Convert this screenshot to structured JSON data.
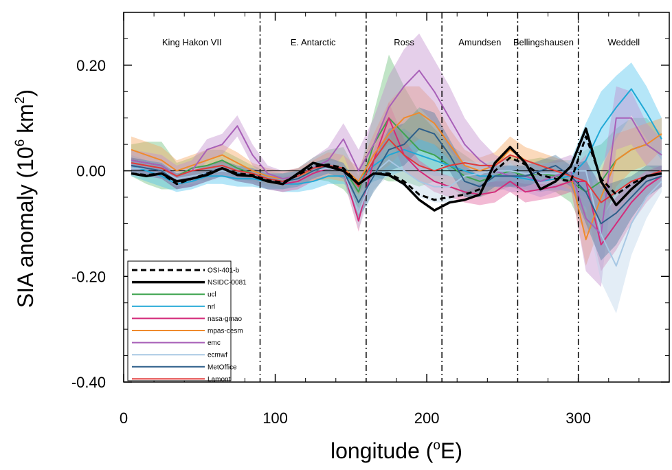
{
  "chart_data": {
    "type": "line",
    "title": "",
    "xlabel": "longitude (°E)",
    "xlabel_prefix": "longitude (",
    "xlabel_sup": "o",
    "xlabel_suffix": "E)",
    "ylabel": "SIA anomaly (10⁶ km²)",
    "ylabel_prefix": "SIA anomaly (10",
    "ylabel_sup1": "6",
    "ylabel_mid": " km",
    "ylabel_sup2": "2",
    "ylabel_suffix": ")",
    "xlim": [
      0,
      360
    ],
    "ylim": [
      -0.4,
      0.3
    ],
    "x_ticks": [
      0,
      100,
      200,
      300
    ],
    "x_tick_labels": [
      "0",
      "100",
      "200",
      "300"
    ],
    "y_ticks": [
      -0.4,
      -0.2,
      0.0,
      0.2
    ],
    "y_tick_labels": [
      "-0.40",
      "-0.20",
      "0.00",
      "0.20"
    ],
    "zero_line": true,
    "grid": false,
    "legend_position": "bottom-left",
    "regions": [
      {
        "name": "King Hakon VII",
        "center": 45
      },
      {
        "name": "E. Antarctic",
        "center": 125
      },
      {
        "name": "Ross",
        "center": 185
      },
      {
        "name": "Amundsen",
        "center": 235
      },
      {
        "name": "Bellingshausen",
        "center": 277
      },
      {
        "name": "Weddell",
        "center": 330
      }
    ],
    "boundaries": [
      90,
      160,
      210,
      260,
      300
    ],
    "x": [
      5,
      15,
      25,
      35,
      45,
      55,
      65,
      75,
      85,
      95,
      105,
      115,
      125,
      135,
      145,
      155,
      165,
      175,
      185,
      195,
      205,
      215,
      225,
      235,
      245,
      255,
      265,
      275,
      285,
      295,
      305,
      315,
      325,
      335,
      345,
      355
    ],
    "series": [
      {
        "name": "OSI-401-b",
        "color": "#000000",
        "dash": "8,5",
        "width": 3,
        "band": false,
        "values": [
          -0.005,
          -0.008,
          -0.005,
          -0.025,
          -0.015,
          -0.005,
          0.005,
          -0.005,
          -0.008,
          -0.018,
          -0.022,
          -0.008,
          0.008,
          0.012,
          0.005,
          -0.025,
          -0.005,
          -0.005,
          -0.02,
          -0.045,
          -0.055,
          -0.05,
          -0.045,
          -0.035,
          0.0,
          0.025,
          0.012,
          -0.008,
          -0.015,
          -0.02,
          0.065,
          -0.015,
          -0.045,
          -0.025,
          -0.01,
          -0.005
        ]
      },
      {
        "name": "NSIDC-0081",
        "color": "#000000",
        "dash": "",
        "width": 3.5,
        "band": false,
        "values": [
          -0.005,
          -0.01,
          -0.005,
          -0.02,
          -0.015,
          -0.008,
          0.005,
          -0.008,
          -0.01,
          -0.02,
          -0.025,
          -0.005,
          0.015,
          0.008,
          0.0,
          -0.025,
          -0.005,
          -0.008,
          -0.025,
          -0.055,
          -0.075,
          -0.06,
          -0.055,
          -0.045,
          0.015,
          0.045,
          0.015,
          -0.035,
          -0.02,
          0.008,
          0.08,
          -0.02,
          -0.065,
          -0.035,
          -0.01,
          -0.005
        ]
      },
      {
        "name": "ucl",
        "color": "#3ea34f",
        "dash": "",
        "width": 2,
        "band": true,
        "band_color": "#6bbf7a",
        "values": [
          0.02,
          0.015,
          0.01,
          -0.01,
          0.005,
          0.01,
          0.02,
          0.005,
          -0.005,
          -0.015,
          -0.02,
          -0.01,
          0.005,
          0.01,
          0.005,
          -0.04,
          0.05,
          0.1,
          0.07,
          0.04,
          0.03,
          0.01,
          -0.01,
          -0.02,
          -0.01,
          0.0,
          -0.01,
          -0.005,
          -0.01,
          -0.02,
          -0.04,
          -0.02,
          0.02,
          0.04,
          0.05,
          0.03
        ],
        "spread": [
          0.03,
          0.04,
          0.045,
          0.025,
          0.02,
          0.03,
          0.02,
          0.02,
          0.015,
          0.015,
          0.015,
          0.015,
          0.02,
          0.03,
          0.04,
          0.03,
          0.06,
          0.12,
          0.09,
          0.07,
          0.05,
          0.04,
          0.04,
          0.03,
          0.03,
          0.03,
          0.03,
          0.03,
          0.03,
          0.04,
          0.08,
          0.07,
          0.06,
          0.06,
          0.05,
          0.04
        ]
      },
      {
        "name": "nrl",
        "color": "#20a8d6",
        "dash": "",
        "width": 2,
        "band": true,
        "band_color": "#4fc3ee",
        "values": [
          0.01,
          0.0,
          -0.01,
          -0.025,
          -0.02,
          -0.01,
          -0.01,
          -0.015,
          -0.015,
          -0.02,
          -0.025,
          -0.025,
          -0.02,
          -0.01,
          -0.01,
          -0.02,
          0.01,
          0.03,
          0.04,
          0.03,
          0.02,
          0.01,
          0.0,
          -0.01,
          -0.01,
          -0.01,
          -0.015,
          -0.02,
          -0.015,
          -0.01,
          0.02,
          0.08,
          0.12,
          0.155,
          0.11,
          0.06
        ],
        "spread": [
          0.02,
          0.02,
          0.02,
          0.015,
          0.015,
          0.015,
          0.015,
          0.015,
          0.015,
          0.015,
          0.015,
          0.015,
          0.015,
          0.015,
          0.015,
          0.02,
          0.03,
          0.04,
          0.04,
          0.03,
          0.03,
          0.02,
          0.02,
          0.02,
          0.02,
          0.02,
          0.02,
          0.02,
          0.02,
          0.03,
          0.07,
          0.07,
          0.06,
          0.05,
          0.05,
          0.04
        ]
      },
      {
        "name": "nasa-gmao",
        "color": "#d42a7a",
        "dash": "",
        "width": 2,
        "band": true,
        "band_color": "#e15a98",
        "values": [
          0.01,
          0.005,
          0.0,
          -0.02,
          -0.015,
          -0.005,
          0.005,
          -0.005,
          -0.01,
          -0.02,
          -0.025,
          -0.02,
          -0.005,
          0.005,
          0.0,
          -0.095,
          0.02,
          0.1,
          0.03,
          0.0,
          -0.02,
          -0.03,
          -0.04,
          -0.045,
          -0.04,
          -0.02,
          -0.04,
          -0.035,
          -0.03,
          -0.02,
          -0.02,
          -0.14,
          -0.1,
          -0.06,
          -0.03,
          -0.01
        ],
        "spread": [
          0.015,
          0.015,
          0.015,
          0.015,
          0.015,
          0.015,
          0.015,
          0.015,
          0.015,
          0.015,
          0.015,
          0.015,
          0.015,
          0.015,
          0.015,
          0.02,
          0.02,
          0.03,
          0.03,
          0.02,
          0.02,
          0.02,
          0.02,
          0.02,
          0.02,
          0.02,
          0.02,
          0.02,
          0.02,
          0.02,
          0.05,
          0.05,
          0.05,
          0.04,
          0.03,
          0.02
        ]
      },
      {
        "name": "mpas-cesm",
        "color": "#ef8a2c",
        "dash": "",
        "width": 2,
        "band": true,
        "band_color": "#f5a45d",
        "values": [
          0.04,
          0.03,
          0.02,
          0.0,
          0.01,
          0.02,
          0.03,
          0.015,
          0.0,
          -0.01,
          -0.015,
          -0.01,
          0.0,
          0.01,
          0.005,
          -0.02,
          0.03,
          0.07,
          0.1,
          0.11,
          0.09,
          0.05,
          0.01,
          0.0,
          0.01,
          0.04,
          0.02,
          0.01,
          0.0,
          -0.01,
          -0.13,
          -0.05,
          0.02,
          0.04,
          0.05,
          0.07
        ],
        "spread": [
          0.025,
          0.025,
          0.025,
          0.02,
          0.02,
          0.02,
          0.02,
          0.02,
          0.015,
          0.015,
          0.015,
          0.015,
          0.02,
          0.025,
          0.025,
          0.025,
          0.04,
          0.06,
          0.06,
          0.05,
          0.04,
          0.03,
          0.03,
          0.025,
          0.025,
          0.025,
          0.025,
          0.025,
          0.025,
          0.025,
          0.05,
          0.05,
          0.05,
          0.04,
          0.04,
          0.03
        ]
      },
      {
        "name": "emc",
        "color": "#a860b8",
        "dash": "",
        "width": 2,
        "band": true,
        "band_color": "#c28ccc",
        "values": [
          0.02,
          0.015,
          0.01,
          -0.01,
          0.0,
          0.04,
          0.05,
          0.085,
          0.03,
          -0.005,
          -0.015,
          -0.01,
          0.005,
          0.02,
          0.06,
          0.0,
          0.05,
          0.12,
          0.16,
          0.19,
          0.15,
          0.1,
          0.05,
          0.02,
          0.0,
          -0.01,
          -0.01,
          -0.02,
          -0.01,
          0.0,
          -0.09,
          -0.12,
          0.1,
          0.1,
          0.05,
          0.03
        ],
        "spread": [
          0.02,
          0.02,
          0.02,
          0.02,
          0.02,
          0.02,
          0.02,
          0.02,
          0.02,
          0.015,
          0.015,
          0.015,
          0.02,
          0.025,
          0.03,
          0.04,
          0.05,
          0.06,
          0.07,
          0.07,
          0.06,
          0.06,
          0.05,
          0.04,
          0.03,
          0.03,
          0.03,
          0.03,
          0.03,
          0.03,
          0.1,
          0.1,
          0.06,
          0.05,
          0.04,
          0.03
        ]
      },
      {
        "name": "ecmwf",
        "color": "#a8c8e4",
        "dash": "",
        "width": 2,
        "band": true,
        "band_color": "#bcd4ea",
        "values": [
          0.005,
          0.005,
          0.0,
          -0.015,
          -0.01,
          -0.005,
          0.0,
          -0.005,
          -0.01,
          -0.02,
          -0.02,
          -0.015,
          0.0,
          0.005,
          0.0,
          -0.08,
          -0.005,
          0.02,
          0.0,
          -0.02,
          -0.03,
          -0.03,
          -0.01,
          -0.005,
          0.0,
          0.0,
          -0.005,
          -0.005,
          -0.005,
          0.0,
          0.0,
          -0.12,
          -0.18,
          -0.1,
          -0.05,
          -0.02
        ],
        "spread": [
          0.015,
          0.015,
          0.015,
          0.015,
          0.015,
          0.015,
          0.015,
          0.015,
          0.015,
          0.015,
          0.015,
          0.015,
          0.015,
          0.015,
          0.015,
          0.03,
          0.03,
          0.03,
          0.03,
          0.03,
          0.03,
          0.03,
          0.03,
          0.02,
          0.02,
          0.02,
          0.02,
          0.02,
          0.02,
          0.02,
          0.08,
          0.09,
          0.09,
          0.06,
          0.04,
          0.02
        ]
      },
      {
        "name": "MetOffice",
        "color": "#2e5f8a",
        "dash": "",
        "width": 2,
        "band": true,
        "band_color": "#4f7ea3",
        "values": [
          0.01,
          0.005,
          0.0,
          -0.02,
          -0.015,
          -0.005,
          0.005,
          -0.005,
          -0.01,
          -0.02,
          -0.02,
          -0.015,
          0.0,
          0.01,
          0.0,
          -0.06,
          -0.01,
          0.04,
          0.05,
          0.08,
          0.07,
          0.03,
          -0.02,
          -0.03,
          -0.01,
          -0.01,
          -0.01,
          0.0,
          0.01,
          -0.01,
          -0.04,
          -0.1,
          -0.08,
          -0.05,
          -0.02,
          -0.01
        ],
        "spread": [
          0.015,
          0.015,
          0.015,
          0.015,
          0.015,
          0.015,
          0.015,
          0.015,
          0.015,
          0.015,
          0.015,
          0.015,
          0.015,
          0.015,
          0.015,
          0.03,
          0.03,
          0.04,
          0.04,
          0.04,
          0.04,
          0.03,
          0.03,
          0.02,
          0.02,
          0.02,
          0.02,
          0.02,
          0.02,
          0.02,
          0.06,
          0.07,
          0.06,
          0.04,
          0.03,
          0.02
        ]
      },
      {
        "name": "Lamont",
        "color": "#e03a3a",
        "dash": "",
        "width": 2,
        "band": false,
        "values": [
          0.015,
          0.01,
          0.005,
          -0.01,
          0.0,
          0.005,
          0.01,
          0.0,
          -0.005,
          -0.015,
          -0.02,
          -0.01,
          0.005,
          0.01,
          0.005,
          -0.03,
          0.02,
          0.06,
          0.03,
          0.01,
          0.0,
          0.01,
          0.015,
          0.01,
          0.01,
          0.03,
          0.02,
          0.01,
          0.0,
          -0.01,
          -0.02,
          -0.06,
          -0.04,
          -0.02,
          -0.01,
          0.0
        ]
      }
    ]
  }
}
